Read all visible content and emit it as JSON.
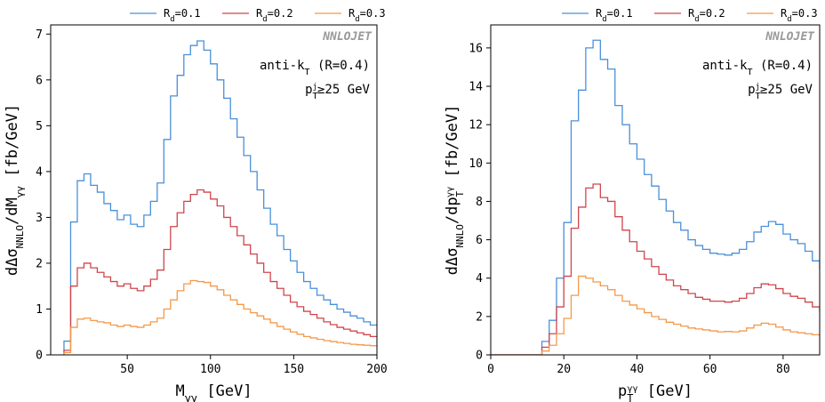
{
  "brand": "NNLOJET",
  "annotation": {
    "line1": "anti-k",
    "line1_sub": "T",
    "line1_tail": " (R=0.4)",
    "line2_p": "p",
    "line2_sub": "T",
    "line2_sup": "j",
    "line2_tail": "≥25 GeV"
  },
  "colors": {
    "rd01": "#4a90d9",
    "rd02": "#d0454c",
    "rd03": "#f5994a"
  },
  "chart_data": [
    {
      "type": "line",
      "step": true,
      "ylabel": "dΔσNNLO/dMγγ [fb/GeV]",
      "ylabel_parts": {
        "main": "dΔσ",
        "sub1": "NNLO",
        "mid": "/dM",
        "sub2": "γγ",
        "tail": " [fb/GeV]"
      },
      "xlabel": "Mγγ [GeV]",
      "xlabel_parts": {
        "main": "M",
        "sub": "γγ",
        "tail": " [GeV]"
      },
      "xlim": [
        4,
        200
      ],
      "ylim": [
        0,
        7.2
      ],
      "xticks": [
        "50",
        "100",
        "150",
        "200"
      ],
      "xtick_values": [
        50,
        100,
        150,
        200
      ],
      "yticks": [
        "0",
        "1",
        "2",
        "3",
        "4",
        "5",
        "6",
        "7"
      ],
      "ytick_values": [
        0,
        1,
        2,
        3,
        4,
        5,
        6,
        7
      ],
      "bin_width": 4,
      "x_start": 12,
      "series": [
        {
          "name": "Rd=0.1",
          "name_main": "R",
          "name_sub": "d",
          "name_tail": "=0.1",
          "color_key": "rd01",
          "values": [
            0.3,
            2.9,
            3.8,
            3.95,
            3.7,
            3.55,
            3.3,
            3.15,
            2.95,
            3.05,
            2.85,
            2.8,
            3.05,
            3.35,
            3.75,
            4.7,
            5.65,
            6.1,
            6.55,
            6.75,
            6.85,
            6.65,
            6.35,
            6.0,
            5.6,
            5.15,
            4.75,
            4.35,
            4.0,
            3.6,
            3.2,
            2.85,
            2.6,
            2.3,
            2.05,
            1.8,
            1.6,
            1.45,
            1.3,
            1.2,
            1.1,
            1.0,
            0.93,
            0.85,
            0.8,
            0.72,
            0.65
          ]
        },
        {
          "name": "Rd=0.2",
          "name_main": "R",
          "name_sub": "d",
          "name_tail": "=0.2",
          "color_key": "rd02",
          "values": [
            0.1,
            1.5,
            1.9,
            2.0,
            1.9,
            1.8,
            1.7,
            1.6,
            1.5,
            1.55,
            1.45,
            1.4,
            1.5,
            1.65,
            1.85,
            2.3,
            2.8,
            3.1,
            3.35,
            3.5,
            3.6,
            3.55,
            3.4,
            3.25,
            3.0,
            2.8,
            2.6,
            2.4,
            2.2,
            2.0,
            1.8,
            1.6,
            1.45,
            1.3,
            1.15,
            1.05,
            0.95,
            0.88,
            0.8,
            0.72,
            0.66,
            0.6,
            0.56,
            0.52,
            0.48,
            0.44,
            0.4
          ]
        },
        {
          "name": "Rd=0.3",
          "name_main": "R",
          "name_sub": "d",
          "name_tail": "=0.3",
          "color_key": "rd03",
          "values": [
            0.05,
            0.6,
            0.78,
            0.8,
            0.75,
            0.72,
            0.7,
            0.65,
            0.62,
            0.65,
            0.62,
            0.6,
            0.65,
            0.72,
            0.8,
            1.0,
            1.2,
            1.4,
            1.55,
            1.62,
            1.6,
            1.58,
            1.5,
            1.42,
            1.3,
            1.2,
            1.1,
            1.0,
            0.92,
            0.85,
            0.78,
            0.7,
            0.62,
            0.56,
            0.5,
            0.45,
            0.4,
            0.37,
            0.34,
            0.31,
            0.29,
            0.27,
            0.25,
            0.23,
            0.22,
            0.21,
            0.2
          ]
        }
      ]
    },
    {
      "type": "line",
      "step": true,
      "ylabel": "dΔσNNLO/dpTγγ [fb/GeV]",
      "ylabel_parts": {
        "main": "dΔσ",
        "sub1": "NNLO",
        "mid": "/dp",
        "sub2": "T",
        "sup2": "γγ",
        "tail": " [fb/GeV]"
      },
      "xlabel": "pTγγ [GeV]",
      "xlabel_parts": {
        "main": "p",
        "sub": "T",
        "sup": "γγ",
        "tail": " [GeV]"
      },
      "xlim": [
        0,
        90
      ],
      "ylim": [
        0,
        17.2
      ],
      "xticks": [
        "0",
        "20",
        "40",
        "60",
        "80"
      ],
      "xtick_values": [
        0,
        20,
        40,
        60,
        80
      ],
      "yticks": [
        "0",
        "2",
        "4",
        "6",
        "8",
        "10",
        "12",
        "14",
        "16"
      ],
      "ytick_values": [
        0,
        2,
        4,
        6,
        8,
        10,
        12,
        14,
        16
      ],
      "bin_width": 2,
      "x_start": 0,
      "series": [
        {
          "name": "Rd=0.1",
          "name_main": "R",
          "name_sub": "d",
          "name_tail": "=0.1",
          "color_key": "rd01",
          "values": [
            0,
            0,
            0,
            0,
            0,
            0,
            0,
            0.7,
            1.8,
            4.0,
            6.9,
            12.2,
            13.8,
            16.0,
            16.4,
            15.4,
            14.9,
            13.0,
            12.0,
            11.0,
            10.2,
            9.4,
            8.8,
            8.1,
            7.5,
            6.9,
            6.5,
            6.0,
            5.7,
            5.5,
            5.3,
            5.25,
            5.2,
            5.3,
            5.5,
            5.9,
            6.4,
            6.7,
            6.95,
            6.8,
            6.3,
            6.0,
            5.8,
            5.4,
            4.9,
            4.5
          ]
        },
        {
          "name": "Rd=0.2",
          "name_main": "R",
          "name_sub": "d",
          "name_tail": "=0.2",
          "color_key": "rd02",
          "values": [
            0,
            0,
            0,
            0,
            0,
            0,
            0,
            0.4,
            1.1,
            2.5,
            4.1,
            6.6,
            7.7,
            8.7,
            8.9,
            8.2,
            8.0,
            7.2,
            6.5,
            5.9,
            5.4,
            5.0,
            4.6,
            4.2,
            3.9,
            3.6,
            3.4,
            3.2,
            3.0,
            2.9,
            2.8,
            2.8,
            2.75,
            2.8,
            2.95,
            3.2,
            3.5,
            3.7,
            3.65,
            3.45,
            3.2,
            3.05,
            2.95,
            2.75,
            2.5,
            2.3
          ]
        },
        {
          "name": "Rd=0.3",
          "name_main": "R",
          "name_sub": "d",
          "name_tail": "=0.3",
          "color_key": "rd03",
          "values": [
            0,
            0,
            0,
            0,
            0,
            0,
            0,
            0.2,
            0.5,
            1.1,
            1.9,
            3.1,
            4.1,
            4.0,
            3.8,
            3.6,
            3.4,
            3.1,
            2.8,
            2.6,
            2.4,
            2.2,
            2.0,
            1.85,
            1.7,
            1.6,
            1.5,
            1.4,
            1.35,
            1.3,
            1.25,
            1.2,
            1.22,
            1.2,
            1.25,
            1.4,
            1.55,
            1.65,
            1.6,
            1.45,
            1.3,
            1.2,
            1.15,
            1.1,
            1.05,
            1.0
          ]
        }
      ]
    }
  ]
}
